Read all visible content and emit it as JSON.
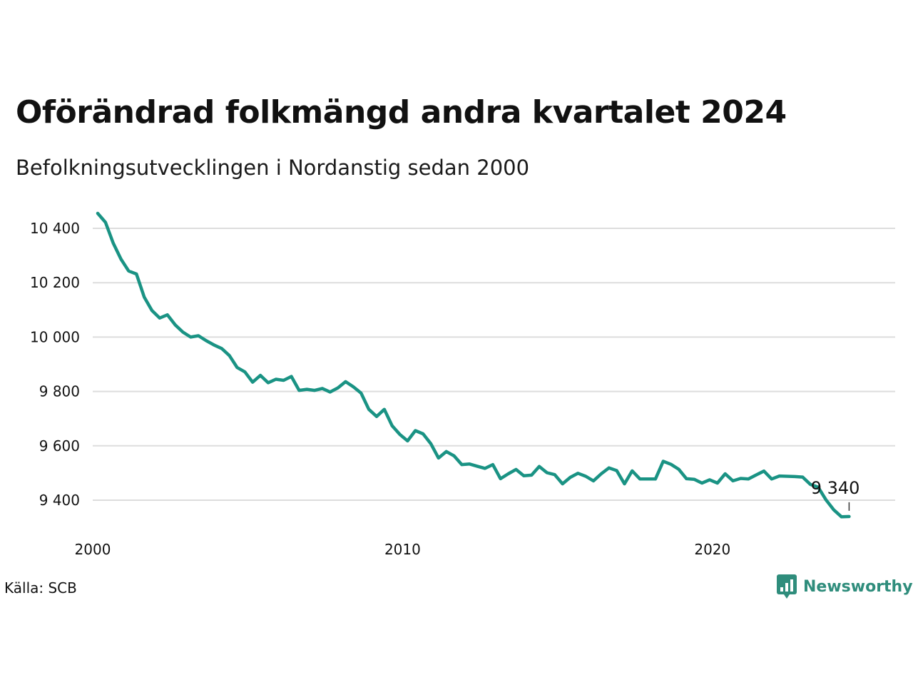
{
  "title": "Oförändrad folkmängd andra kvartalet 2024",
  "subtitle": "Befolkningsutvecklingen i Nordanstig sedan 2000",
  "source": "Källa: SCB",
  "brand": "Newsworthy",
  "colors": {
    "line": "#1a9384",
    "grid": "#dddddd",
    "brand": "#2f8d7c"
  },
  "chart_data": {
    "type": "line",
    "title": "Oförändrad folkmängd andra kvartalet 2024",
    "subtitle": "Befolkningsutvecklingen i Nordanstig sedan 2000",
    "xlabel": "",
    "ylabel": "",
    "xlim": [
      2000.0,
      2025.0
    ],
    "ylim": [
      9290,
      10470
    ],
    "x_ticks": [
      2000,
      2010,
      2020
    ],
    "x_tick_labels": [
      "2000",
      "2010",
      "2020"
    ],
    "y_ticks": [
      9400,
      9600,
      9800,
      10000,
      10200,
      10400
    ],
    "y_tick_labels": [
      "9 400",
      "9 600",
      "9 800",
      "10 000",
      "10 200",
      "10 400"
    ],
    "grid": "horizontal",
    "legend": "none",
    "end_label": "9 340",
    "series": [
      {
        "x": [
          2000.0,
          2000.25,
          2000.5,
          2000.75,
          2001.0,
          2001.25,
          2001.5,
          2001.75,
          2002.0,
          2002.25,
          2002.5,
          2002.75,
          2003.0,
          2003.25,
          2003.5,
          2003.75,
          2004.0,
          2004.25,
          2004.5,
          2004.75,
          2005.0,
          2005.25,
          2005.5,
          2005.75,
          2006.0,
          2006.25,
          2006.5,
          2006.75,
          2007.0,
          2007.25,
          2007.5,
          2007.75,
          2008.0,
          2008.25,
          2008.5,
          2008.75,
          2009.0,
          2009.25,
          2009.5,
          2009.75,
          2010.0,
          2010.25,
          2010.5,
          2010.75,
          2011.0,
          2011.25,
          2011.5,
          2011.75,
          2012.0,
          2012.25,
          2012.5,
          2012.75,
          2013.0,
          2013.25,
          2013.5,
          2013.75,
          2014.0,
          2014.25,
          2014.5,
          2014.75,
          2015.0,
          2015.25,
          2015.5,
          2015.75,
          2016.0,
          2016.25,
          2016.5,
          2016.75,
          2017.0,
          2017.25,
          2017.5,
          2017.75,
          2018.0,
          2018.25,
          2018.5,
          2018.75,
          2019.0,
          2019.25,
          2019.5,
          2019.75,
          2020.0,
          2020.25,
          2020.5,
          2020.75,
          2021.0,
          2021.25,
          2021.5,
          2021.75,
          2022.0,
          2022.25,
          2022.5,
          2022.75,
          2023.0,
          2023.25,
          2023.5,
          2023.75,
          2024.0,
          2024.25
        ],
        "values": [
          10455,
          10422,
          10346,
          10287,
          10243,
          10232,
          10147,
          10098,
          10070,
          10082,
          10045,
          10018,
          10000,
          10005,
          9987,
          9971,
          9958,
          9932,
          9888,
          9872,
          9834,
          9859,
          9832,
          9845,
          9841,
          9855,
          9804,
          9808,
          9804,
          9811,
          9798,
          9813,
          9836,
          9817,
          9794,
          9734,
          9708,
          9734,
          9674,
          9642,
          9618,
          9656,
          9644,
          9608,
          9555,
          9579,
          9563,
          9531,
          9533,
          9525,
          9517,
          9531,
          9479,
          9497,
          9513,
          9490,
          9492,
          9524,
          9501,
          9494,
          9460,
          9484,
          9499,
          9488,
          9471,
          9497,
          9519,
          9509,
          9460,
          9508,
          9478,
          9478,
          9478,
          9543,
          9532,
          9514,
          9479,
          9477,
          9463,
          9475,
          9463,
          9497,
          9471,
          9480,
          9478,
          9493,
          9507,
          9478,
          9489,
          9488,
          9487,
          9485,
          9458,
          9448,
          9402,
          9365,
          9339,
          9340
        ]
      }
    ]
  }
}
